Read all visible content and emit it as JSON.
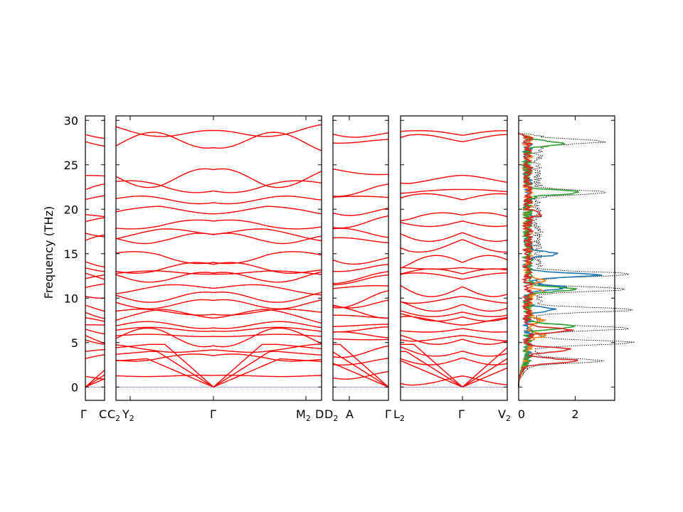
{
  "chart_data": {
    "type": "line",
    "title": "",
    "ylabel": "Frequency (THz)",
    "ylim": [
      -1.5,
      30.5
    ],
    "y_ticks": [
      "0",
      "5",
      "10",
      "15",
      "20",
      "25",
      "30"
    ],
    "band_color": "#ff0000",
    "zero_line_color": "#0000ff",
    "panels": [
      {
        "name": "panel-1",
        "xticks": [
          "Γ",
          "C"
        ]
      },
      {
        "name": "panel-2",
        "xticks": [
          "C",
          "Y",
          "Γ",
          "M",
          "D"
        ]
      },
      {
        "name": "panel-3",
        "xticks": [
          "D",
          "A",
          "Γ"
        ]
      },
      {
        "name": "panel-4",
        "xticks": [
          "L",
          "Γ",
          "V"
        ]
      }
    ],
    "x_labels": {
      "gamma1": "Γ",
      "c1": "C",
      "c2": "C",
      "y2": "Y",
      "gamma2": "Γ",
      "m2": "M",
      "d1": "D",
      "d2": "D",
      "a": "A",
      "gamma3": "Γ",
      "l2": "L",
      "gamma4": "Γ",
      "v2": "V",
      "sub2": "2"
    },
    "band_frequencies_at_gamma": [
      0,
      0,
      0,
      1.2,
      3.2,
      4.0,
      5.3,
      5.8,
      6.5,
      7.0,
      7.8,
      8.4,
      9.2,
      10.2,
      11.2,
      12.2,
      12.8,
      13.4,
      14.1,
      16.5,
      17.3,
      18.6,
      19.4,
      21.1,
      22.2,
      23.8,
      27.6,
      28.4
    ],
    "dos": {
      "xlim": [
        0,
        3.4
      ],
      "x_ticks": [
        "0",
        "2"
      ],
      "total_color": "#000000",
      "projections": [
        {
          "color": "#1f77b4",
          "peaks": [
            [
              12.6,
              2.5
            ],
            [
              15.0,
              1.1
            ],
            [
              11.2,
              1.3
            ],
            [
              8.7,
              0.9
            ]
          ]
        },
        {
          "color": "#ff7f0e",
          "peaks": [
            [
              12.0,
              0.6
            ],
            [
              7.5,
              0.5
            ],
            [
              10.8,
              0.6
            ],
            [
              5.8,
              0.5
            ]
          ]
        },
        {
          "color": "#2ca02c",
          "peaks": [
            [
              27.4,
              1.3
            ],
            [
              21.9,
              1.8
            ],
            [
              11.0,
              1.7
            ],
            [
              6.8,
              1.7
            ]
          ]
        },
        {
          "color": "#d62728",
          "peaks": [
            [
              2.9,
              1.9
            ],
            [
              6.4,
              1.5
            ],
            [
              4.2,
              1.5
            ],
            [
              19.5,
              0.5
            ]
          ]
        }
      ],
      "total_peaks": [
        [
          27.6,
          2.3
        ],
        [
          21.9,
          2.4
        ],
        [
          12.7,
          3.4
        ],
        [
          11.0,
          3.2
        ],
        [
          8.7,
          3.4
        ],
        [
          6.6,
          3.3
        ],
        [
          5.0,
          3.4
        ],
        [
          2.9,
          2.5
        ]
      ]
    }
  }
}
